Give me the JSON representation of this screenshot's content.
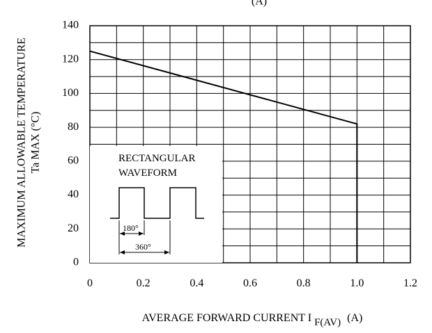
{
  "chart_data": {
    "type": "line",
    "title_fragment": "(A)",
    "xlabel": {
      "main": "AVERAGE FORWARD CURRENT I",
      "subscript": "F(AV)",
      "unit": "(A)"
    },
    "ylabel": {
      "line1": "MAXIMUM ALLOWABLE TEMPERATURE",
      "line2": "Ta MAX  (°C)"
    },
    "xlim": [
      0,
      1.2
    ],
    "ylim": [
      0,
      140
    ],
    "x_ticks": [
      "0",
      "0.2",
      "0.4",
      "0.6",
      "0.8",
      "1.0",
      "1.2"
    ],
    "y_ticks": [
      "0",
      "20",
      "40",
      "60",
      "80",
      "100",
      "120",
      "140"
    ],
    "grid": true,
    "series": [
      {
        "x": [
          0,
          1.0,
          1.0
        ],
        "y": [
          125,
          82,
          0
        ]
      }
    ],
    "inset": {
      "label_line1": "RECTANGULAR",
      "label_line2": "WAVEFORM",
      "dim_180": "180°",
      "dim_360": "360°"
    }
  }
}
